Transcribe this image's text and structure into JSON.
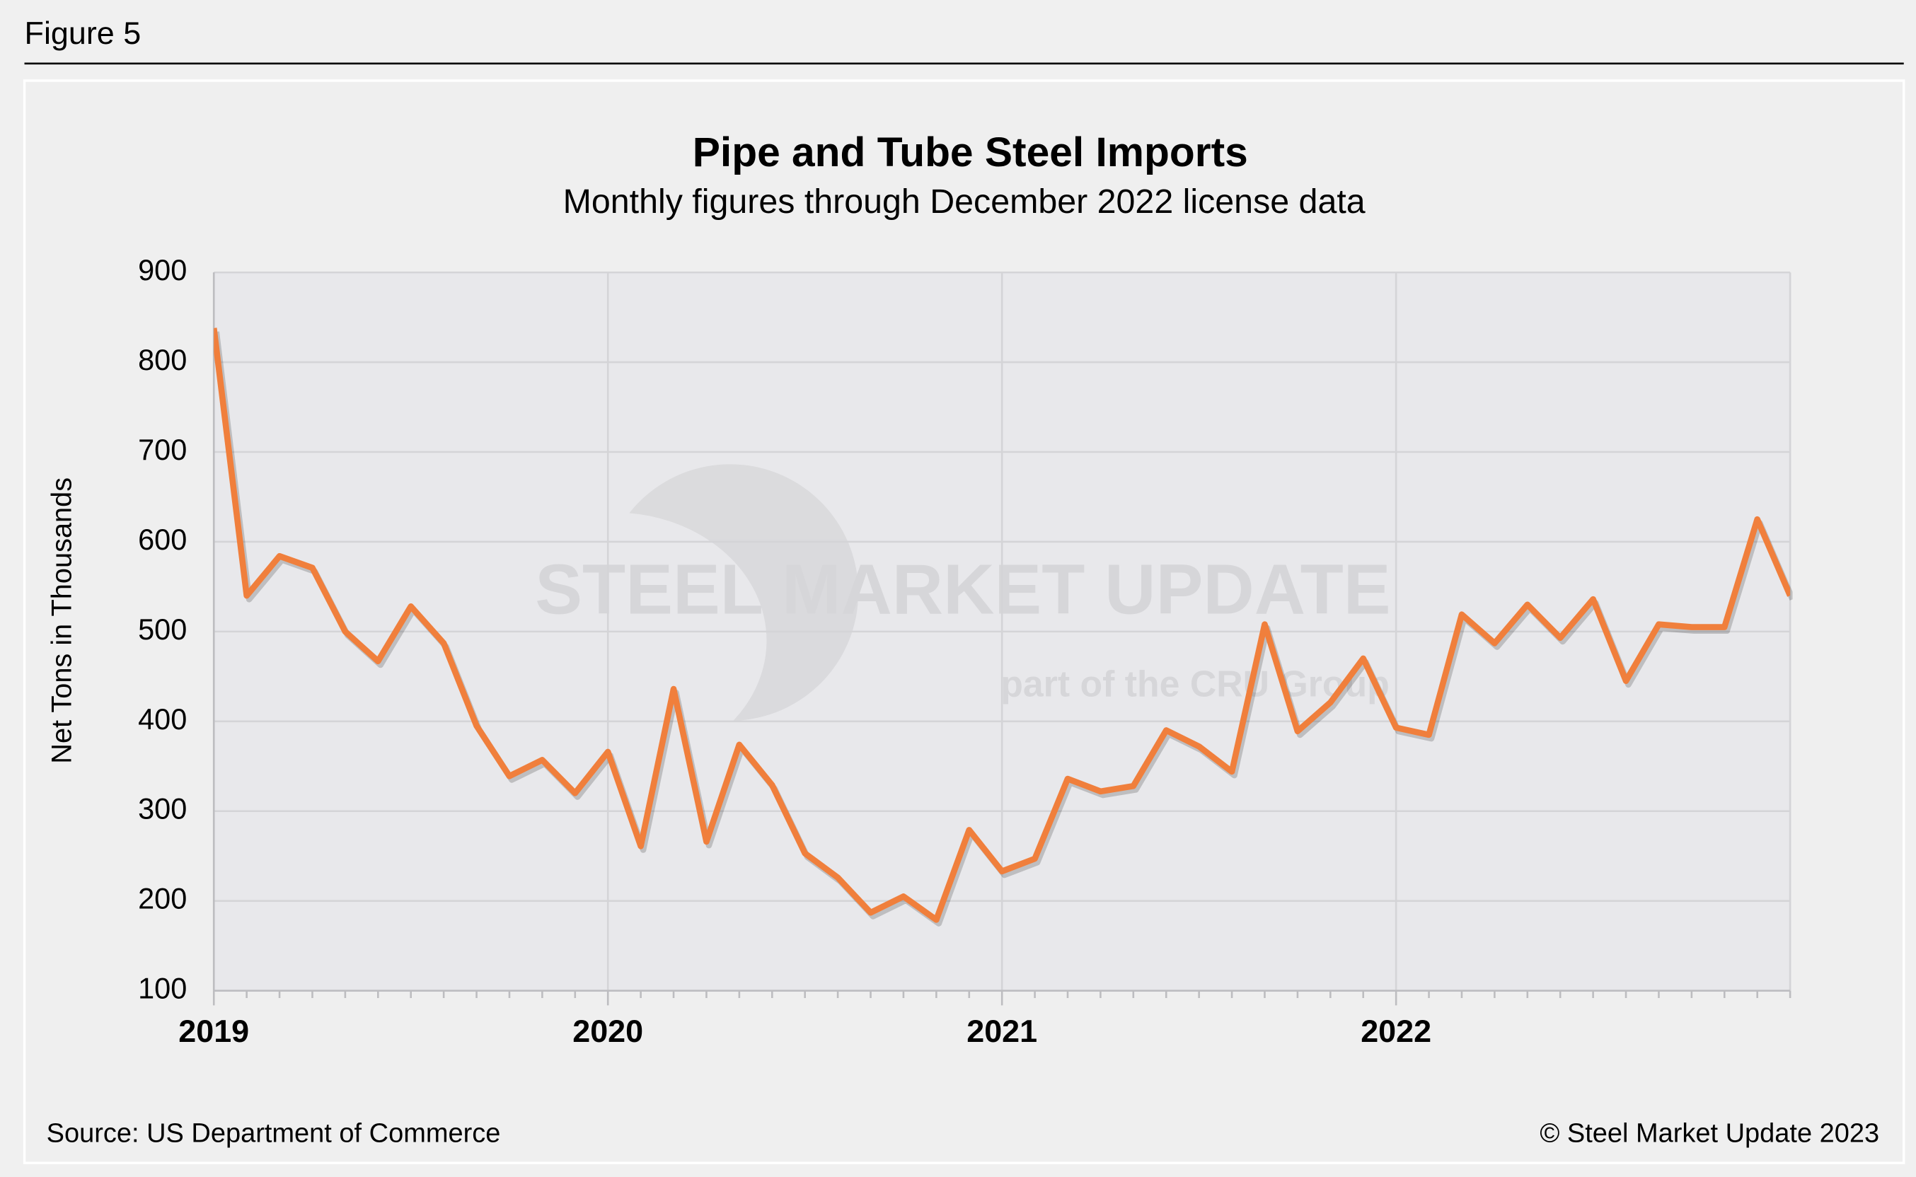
{
  "figure_label": "Figure 5",
  "chart_data": {
    "type": "line",
    "title": "Pipe and Tube Steel Imports",
    "subtitle": "Monthly figures through December 2022 license data",
    "y_label": "Net Tons in Thousands",
    "categories": [
      "2019",
      null,
      null,
      null,
      null,
      null,
      null,
      null,
      null,
      null,
      null,
      null,
      "2020",
      null,
      null,
      null,
      null,
      null,
      null,
      null,
      null,
      null,
      null,
      null,
      "2021",
      null,
      null,
      null,
      null,
      null,
      null,
      null,
      null,
      null,
      null,
      null,
      "2022",
      null,
      null,
      null,
      null,
      null,
      null,
      null,
      null,
      null,
      null,
      null,
      null
    ],
    "series": [
      {
        "name": "Pipe and Tube Steel Imports",
        "color": "#f07f3c",
        "values": [
          838,
          540,
          584,
          571,
          500,
          467,
          528,
          487,
          395,
          339,
          357,
          320,
          366,
          261,
          436,
          266,
          374,
          329,
          253,
          226,
          187,
          205,
          179,
          279,
          233,
          247,
          336,
          322,
          328,
          390,
          372,
          344,
          508,
          389,
          421,
          470,
          393,
          385,
          519,
          487,
          530,
          493,
          536,
          445,
          508,
          505,
          505,
          625,
          540
        ]
      }
    ],
    "ylim": [
      100,
      900
    ],
    "yticks": [
      100,
      200,
      300,
      400,
      500,
      600,
      700,
      800,
      900
    ],
    "grid": true,
    "watermark": "STEEL MARKET UPDATE",
    "watermark_sub": "part of the CRU Group",
    "source": "Source: US Department of Commerce",
    "copyright": "© Steel Market Update 2023"
  }
}
